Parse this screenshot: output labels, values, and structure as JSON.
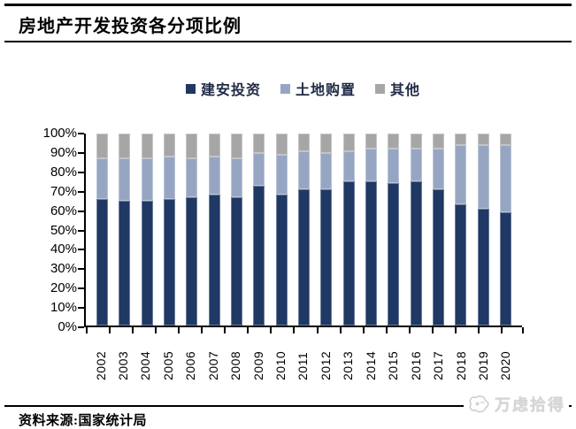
{
  "page": {
    "title": "房地产开发投资各分项比例",
    "source": "资料来源:国家统计局",
    "watermark": "万虑拾得"
  },
  "chart_data": {
    "type": "bar",
    "stacked": true,
    "percent_stacked": true,
    "title": "房地产开发投资各分项比例",
    "categories": [
      "2002",
      "2003",
      "2004",
      "2005",
      "2006",
      "2007",
      "2008",
      "2009",
      "2010",
      "2011",
      "2012",
      "2013",
      "2014",
      "2015",
      "2016",
      "2017",
      "2018",
      "2019",
      "2020"
    ],
    "series": [
      {
        "name": "建安投资",
        "color": "#1f3864",
        "values": [
          66,
          65,
          65,
          66,
          67,
          68,
          67,
          73,
          68,
          71,
          71,
          75,
          75,
          74,
          75,
          71,
          63,
          61,
          59
        ]
      },
      {
        "name": "土地购置",
        "color": "#96a6c2",
        "values": [
          21,
          22,
          22,
          22,
          20,
          20,
          20,
          17,
          21,
          20,
          19,
          16,
          17,
          18,
          17,
          21,
          31,
          33,
          35
        ]
      },
      {
        "name": "其他",
        "color": "#a6a6a6",
        "values": [
          13,
          13,
          13,
          12,
          13,
          12,
          13,
          10,
          11,
          9,
          10,
          9,
          8,
          8,
          8,
          8,
          6,
          6,
          6
        ]
      }
    ],
    "xlabel": "",
    "ylabel": "",
    "ylim": [
      0,
      100
    ],
    "yticks": [
      "0%",
      "10%",
      "20%",
      "30%",
      "40%",
      "50%",
      "60%",
      "70%",
      "80%",
      "90%",
      "100%"
    ],
    "grid": false,
    "legend_position": "top"
  }
}
